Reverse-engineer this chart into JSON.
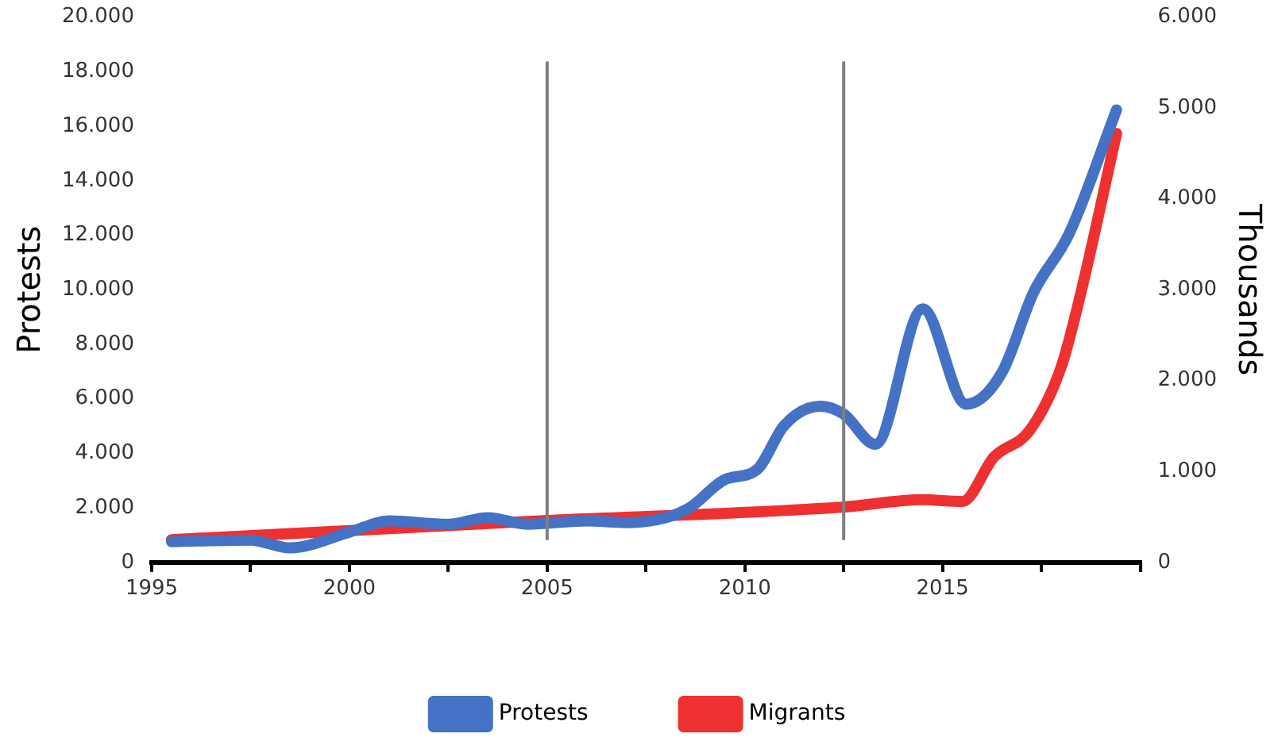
{
  "chart_data": {
    "type": "line",
    "ylabel": "Protests",
    "y2label": "Thousands",
    "xlim": [
      1995,
      2020
    ],
    "xticks": [
      1995,
      {
        "value": 1997.5,
        "label": null
      },
      2000,
      {
        "value": 2002.5,
        "label": null
      },
      2005,
      {
        "value": 2007.5,
        "label": null
      },
      2010,
      {
        "value": 2012.5,
        "label": null
      },
      2015,
      {
        "value": 2017.5,
        "label": null
      },
      {
        "value": 2020,
        "label": null
      }
    ],
    "ylim": [
      0,
      20000
    ],
    "yticks": [
      {
        "value": 0,
        "label": "0"
      },
      {
        "value": 2000,
        "label": "2.000"
      },
      {
        "value": 4000,
        "label": "4.000"
      },
      {
        "value": 6000,
        "label": "6.000"
      },
      {
        "value": 8000,
        "label": "8.000"
      },
      {
        "value": 10000,
        "label": "10.000"
      },
      {
        "value": 12000,
        "label": "12.000"
      },
      {
        "value": 14000,
        "label": "14.000"
      },
      {
        "value": 16000,
        "label": "16.000"
      },
      {
        "value": 18000,
        "label": "18.000"
      },
      {
        "value": 20000,
        "label": "20.000"
      }
    ],
    "y2lim": [
      0,
      6000
    ],
    "y2ticks": [
      {
        "value": 0,
        "label": "0"
      },
      {
        "value": 1000,
        "label": "1.000"
      },
      {
        "value": 2000,
        "label": "2.000"
      },
      {
        "value": 3000,
        "label": "3.000"
      },
      {
        "value": 4000,
        "label": "4.000"
      },
      {
        "value": 5000,
        "label": "5.000"
      },
      {
        "value": 6000,
        "label": "6.000"
      }
    ],
    "series": [
      {
        "name": "Protests",
        "color": "#4472c4",
        "x": [
          1995.5,
          1997.5,
          1998.5,
          2000,
          2001,
          2002.5,
          2003.5,
          2004.5,
          2006,
          2007,
          2008,
          2008.6,
          2009.5,
          2010.3,
          2011,
          2011.9,
          2012.5,
          2013.3,
          2014.5,
          2015.6,
          2016.5,
          2017.3,
          2018.2,
          2019.4
        ],
        "values": [
          760,
          820,
          530,
          1110,
          1520,
          1400,
          1640,
          1400,
          1520,
          1460,
          1640,
          2000,
          3040,
          3390,
          5030,
          5730,
          5440,
          4330,
          9300,
          5800,
          6960,
          9900,
          12050,
          16600
        ]
      },
      {
        "name": "Migrants",
        "color": "#ee3130",
        "axis": "y2",
        "x": [
          1995.5,
          2005,
          2012.5,
          2014.5,
          2015.5,
          2016.3,
          2017.2,
          2018,
          2018.5,
          2019.4
        ],
        "values": [
          250,
          460,
          610,
          690,
          670,
          1160,
          1450,
          2150,
          2970,
          4720
        ]
      }
    ],
    "ref_lines": [
      {
        "axis": "x",
        "value": 2005,
        "color": "#7f7f7f"
      },
      {
        "axis": "x",
        "value": 2012.5,
        "color": "#7f7f7f"
      }
    ],
    "grid": false,
    "legend": "bottom",
    "marker": "none",
    "line_style": "solid"
  }
}
